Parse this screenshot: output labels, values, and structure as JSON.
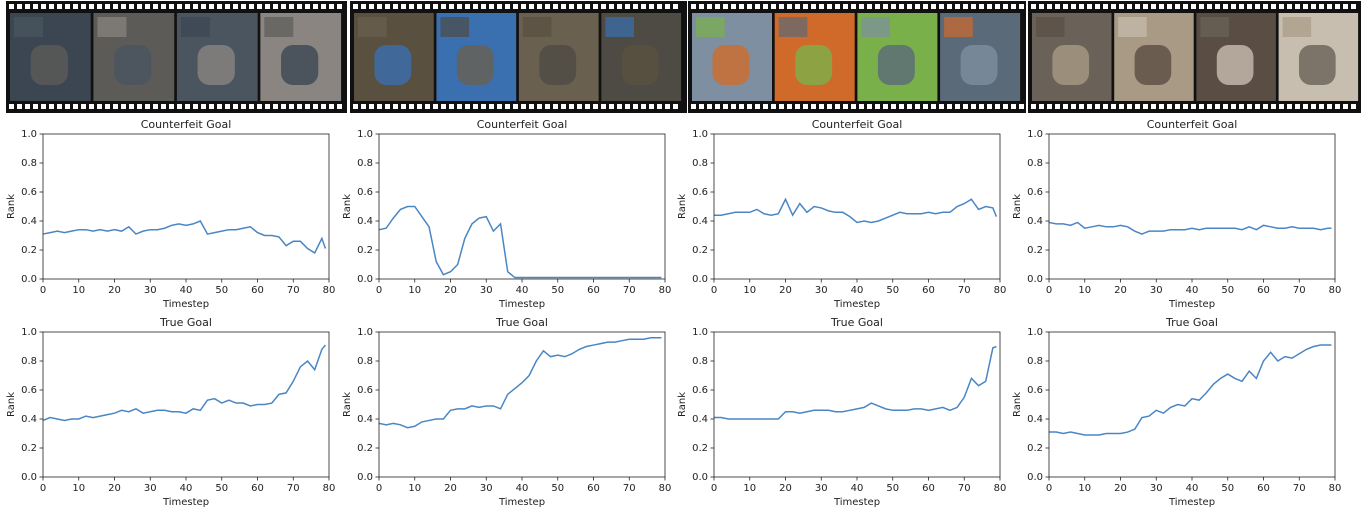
{
  "chart_data": [
    {
      "type": "line",
      "title": "Counterfeit Goal",
      "xlabel": "Timestep",
      "ylabel": "Rank",
      "color": "#4a86c4",
      "x": [
        0,
        2,
        4,
        6,
        8,
        10,
        12,
        14,
        16,
        18,
        20,
        22,
        24,
        26,
        28,
        30,
        32,
        34,
        36,
        38,
        40,
        42,
        44,
        46,
        48,
        50,
        52,
        54,
        56,
        58,
        60,
        62,
        64,
        66,
        68,
        70,
        72,
        74,
        76,
        78,
        79
      ],
      "values": [
        0.31,
        0.32,
        0.33,
        0.32,
        0.33,
        0.34,
        0.34,
        0.33,
        0.34,
        0.33,
        0.34,
        0.33,
        0.36,
        0.31,
        0.33,
        0.34,
        0.34,
        0.35,
        0.37,
        0.38,
        0.37,
        0.38,
        0.4,
        0.31,
        0.32,
        0.33,
        0.34,
        0.34,
        0.35,
        0.36,
        0.32,
        0.3,
        0.3,
        0.29,
        0.23,
        0.26,
        0.26,
        0.21,
        0.18,
        0.28,
        0.21
      ],
      "xlim": [
        0,
        80
      ],
      "xticks": [
        0,
        10,
        20,
        30,
        40,
        50,
        60,
        70,
        80
      ],
      "ylim": [
        0,
        1
      ],
      "yticks": [
        {
          "value": 0,
          "label": "0.0"
        },
        0.2,
        0.4,
        0.6,
        0.8,
        {
          "value": 1,
          "label": "1.0"
        }
      ]
    },
    {
      "type": "line",
      "title": "Counterfeit Goal",
      "xlabel": "Timestep",
      "ylabel": "Rank",
      "color": "#4a86c4",
      "x": [
        0,
        2,
        4,
        6,
        8,
        10,
        12,
        14,
        16,
        18,
        20,
        22,
        24,
        26,
        28,
        30,
        32,
        34,
        36,
        38,
        40,
        42,
        44,
        46,
        48,
        50,
        52,
        54,
        56,
        58,
        60,
        62,
        64,
        66,
        68,
        70,
        72,
        74,
        76,
        78,
        79
      ],
      "values": [
        0.34,
        0.35,
        0.42,
        0.48,
        0.5,
        0.5,
        0.43,
        0.36,
        0.12,
        0.03,
        0.05,
        0.1,
        0.28,
        0.38,
        0.42,
        0.43,
        0.33,
        0.38,
        0.05,
        0.01,
        0.01,
        0.01,
        0.01,
        0.01,
        0.01,
        0.01,
        0.01,
        0.01,
        0.01,
        0.01,
        0.01,
        0.01,
        0.01,
        0.01,
        0.01,
        0.01,
        0.01,
        0.01,
        0.01,
        0.01,
        0.01
      ],
      "xlim": [
        0,
        80
      ],
      "xticks": [
        0,
        10,
        20,
        30,
        40,
        50,
        60,
        70,
        80
      ],
      "ylim": [
        0,
        1
      ],
      "yticks": [
        {
          "value": 0,
          "label": "0.0"
        },
        0.2,
        0.4,
        0.6,
        0.8,
        {
          "value": 1,
          "label": "1.0"
        }
      ]
    },
    {
      "type": "line",
      "title": "Counterfeit Goal",
      "xlabel": "Timestep",
      "ylabel": "Rank",
      "color": "#4a86c4",
      "x": [
        0,
        2,
        4,
        6,
        8,
        10,
        12,
        14,
        16,
        18,
        20,
        22,
        24,
        26,
        28,
        30,
        32,
        34,
        36,
        38,
        40,
        42,
        44,
        46,
        48,
        50,
        52,
        54,
        56,
        58,
        60,
        62,
        64,
        66,
        68,
        70,
        72,
        74,
        76,
        78,
        79
      ],
      "values": [
        0.44,
        0.44,
        0.45,
        0.46,
        0.46,
        0.46,
        0.48,
        0.45,
        0.44,
        0.45,
        0.55,
        0.44,
        0.52,
        0.46,
        0.5,
        0.49,
        0.47,
        0.46,
        0.46,
        0.43,
        0.39,
        0.4,
        0.39,
        0.4,
        0.42,
        0.44,
        0.46,
        0.45,
        0.45,
        0.45,
        0.46,
        0.45,
        0.46,
        0.46,
        0.5,
        0.52,
        0.55,
        0.48,
        0.5,
        0.49,
        0.43
      ],
      "xlim": [
        0,
        80
      ],
      "xticks": [
        0,
        10,
        20,
        30,
        40,
        50,
        60,
        70,
        80
      ],
      "ylim": [
        0,
        1
      ],
      "yticks": [
        {
          "value": 0,
          "label": "0.0"
        },
        0.2,
        0.4,
        0.6,
        0.8,
        {
          "value": 1,
          "label": "1.0"
        }
      ]
    },
    {
      "type": "line",
      "title": "Counterfeit Goal",
      "xlabel": "Timestep",
      "ylabel": "Rank",
      "color": "#4a86c4",
      "x": [
        0,
        2,
        4,
        6,
        8,
        10,
        12,
        14,
        16,
        18,
        20,
        22,
        24,
        26,
        28,
        30,
        32,
        34,
        36,
        38,
        40,
        42,
        44,
        46,
        48,
        50,
        52,
        54,
        56,
        58,
        60,
        62,
        64,
        66,
        68,
        70,
        72,
        74,
        76,
        78,
        79
      ],
      "values": [
        0.39,
        0.38,
        0.38,
        0.37,
        0.39,
        0.35,
        0.36,
        0.37,
        0.36,
        0.36,
        0.37,
        0.36,
        0.33,
        0.31,
        0.33,
        0.33,
        0.33,
        0.34,
        0.34,
        0.34,
        0.35,
        0.34,
        0.35,
        0.35,
        0.35,
        0.35,
        0.35,
        0.34,
        0.36,
        0.34,
        0.37,
        0.36,
        0.35,
        0.35,
        0.36,
        0.35,
        0.35,
        0.35,
        0.34,
        0.35,
        0.35
      ],
      "xlim": [
        0,
        80
      ],
      "xticks": [
        0,
        10,
        20,
        30,
        40,
        50,
        60,
        70,
        80
      ],
      "ylim": [
        0,
        1
      ],
      "yticks": [
        {
          "value": 0,
          "label": "0.0"
        },
        0.2,
        0.4,
        0.6,
        0.8,
        {
          "value": 1,
          "label": "1.0"
        }
      ]
    },
    {
      "type": "line",
      "title": "True Goal",
      "xlabel": "Timestep",
      "ylabel": "Rank",
      "color": "#4a86c4",
      "x": [
        0,
        2,
        4,
        6,
        8,
        10,
        12,
        14,
        16,
        18,
        20,
        22,
        24,
        26,
        28,
        30,
        32,
        34,
        36,
        38,
        40,
        42,
        44,
        46,
        48,
        50,
        52,
        54,
        56,
        58,
        60,
        62,
        64,
        66,
        68,
        70,
        72,
        74,
        76,
        78,
        79
      ],
      "values": [
        0.39,
        0.41,
        0.4,
        0.39,
        0.4,
        0.4,
        0.42,
        0.41,
        0.42,
        0.43,
        0.44,
        0.46,
        0.45,
        0.47,
        0.44,
        0.45,
        0.46,
        0.46,
        0.45,
        0.45,
        0.44,
        0.47,
        0.46,
        0.53,
        0.54,
        0.51,
        0.53,
        0.51,
        0.51,
        0.49,
        0.5,
        0.5,
        0.51,
        0.57,
        0.58,
        0.66,
        0.76,
        0.8,
        0.74,
        0.88,
        0.91
      ],
      "xlim": [
        0,
        80
      ],
      "xticks": [
        0,
        10,
        20,
        30,
        40,
        50,
        60,
        70,
        80
      ],
      "ylim": [
        0,
        1
      ],
      "yticks": [
        {
          "value": 0,
          "label": "0.0"
        },
        0.2,
        0.4,
        0.6,
        0.8,
        {
          "value": 1,
          "label": "1.0"
        }
      ]
    },
    {
      "type": "line",
      "title": "True Goal",
      "xlabel": "Timestep",
      "ylabel": "Rank",
      "color": "#4a86c4",
      "x": [
        0,
        2,
        4,
        6,
        8,
        10,
        12,
        14,
        16,
        18,
        20,
        22,
        24,
        26,
        28,
        30,
        32,
        34,
        36,
        38,
        40,
        42,
        44,
        46,
        48,
        50,
        52,
        54,
        56,
        58,
        60,
        62,
        64,
        66,
        68,
        70,
        72,
        74,
        76,
        78,
        79
      ],
      "values": [
        0.37,
        0.36,
        0.37,
        0.36,
        0.34,
        0.35,
        0.38,
        0.39,
        0.4,
        0.4,
        0.46,
        0.47,
        0.47,
        0.49,
        0.48,
        0.49,
        0.49,
        0.47,
        0.57,
        0.61,
        0.65,
        0.7,
        0.8,
        0.87,
        0.83,
        0.84,
        0.83,
        0.85,
        0.88,
        0.9,
        0.91,
        0.92,
        0.93,
        0.93,
        0.94,
        0.95,
        0.95,
        0.95,
        0.96,
        0.96,
        0.96
      ],
      "xlim": [
        0,
        80
      ],
      "xticks": [
        0,
        10,
        20,
        30,
        40,
        50,
        60,
        70,
        80
      ],
      "ylim": [
        0,
        1
      ],
      "yticks": [
        {
          "value": 0,
          "label": "0.0"
        },
        0.2,
        0.4,
        0.6,
        0.8,
        {
          "value": 1,
          "label": "1.0"
        }
      ]
    },
    {
      "type": "line",
      "title": "True Goal",
      "xlabel": "Timestep",
      "ylabel": "Rank",
      "color": "#4a86c4",
      "x": [
        0,
        2,
        4,
        6,
        8,
        10,
        12,
        14,
        16,
        18,
        20,
        22,
        24,
        26,
        28,
        30,
        32,
        34,
        36,
        38,
        40,
        42,
        44,
        46,
        48,
        50,
        52,
        54,
        56,
        58,
        60,
        62,
        64,
        66,
        68,
        70,
        72,
        74,
        76,
        78,
        79
      ],
      "values": [
        0.41,
        0.41,
        0.4,
        0.4,
        0.4,
        0.4,
        0.4,
        0.4,
        0.4,
        0.4,
        0.45,
        0.45,
        0.44,
        0.45,
        0.46,
        0.46,
        0.46,
        0.45,
        0.45,
        0.46,
        0.47,
        0.48,
        0.51,
        0.49,
        0.47,
        0.46,
        0.46,
        0.46,
        0.47,
        0.47,
        0.46,
        0.47,
        0.48,
        0.46,
        0.48,
        0.55,
        0.68,
        0.63,
        0.66,
        0.89,
        0.9
      ],
      "xlim": [
        0,
        80
      ],
      "xticks": [
        0,
        10,
        20,
        30,
        40,
        50,
        60,
        70,
        80
      ],
      "ylim": [
        0,
        1
      ],
      "yticks": [
        {
          "value": 0,
          "label": "0.0"
        },
        0.2,
        0.4,
        0.6,
        0.8,
        {
          "value": 1,
          "label": "1.0"
        }
      ]
    },
    {
      "type": "line",
      "title": "True Goal",
      "xlabel": "Timestep",
      "ylabel": "Rank",
      "color": "#4a86c4",
      "x": [
        0,
        2,
        4,
        6,
        8,
        10,
        12,
        14,
        16,
        18,
        20,
        22,
        24,
        26,
        28,
        30,
        32,
        34,
        36,
        38,
        40,
        42,
        44,
        46,
        48,
        50,
        52,
        54,
        56,
        58,
        60,
        62,
        64,
        66,
        68,
        70,
        72,
        74,
        76,
        78,
        79
      ],
      "values": [
        0.31,
        0.31,
        0.3,
        0.31,
        0.3,
        0.29,
        0.29,
        0.29,
        0.3,
        0.3,
        0.3,
        0.31,
        0.33,
        0.41,
        0.42,
        0.46,
        0.44,
        0.48,
        0.5,
        0.49,
        0.54,
        0.53,
        0.58,
        0.64,
        0.68,
        0.71,
        0.68,
        0.66,
        0.73,
        0.68,
        0.8,
        0.86,
        0.8,
        0.83,
        0.82,
        0.85,
        0.88,
        0.9,
        0.91,
        0.91,
        0.91
      ],
      "xlim": [
        0,
        80
      ],
      "xticks": [
        0,
        10,
        20,
        30,
        40,
        50,
        60,
        70,
        80
      ],
      "ylim": [
        0,
        1
      ],
      "yticks": [
        {
          "value": 0,
          "label": "0.0"
        },
        0.2,
        0.4,
        0.6,
        0.8,
        {
          "value": 1,
          "label": "1.0"
        }
      ]
    }
  ]
}
